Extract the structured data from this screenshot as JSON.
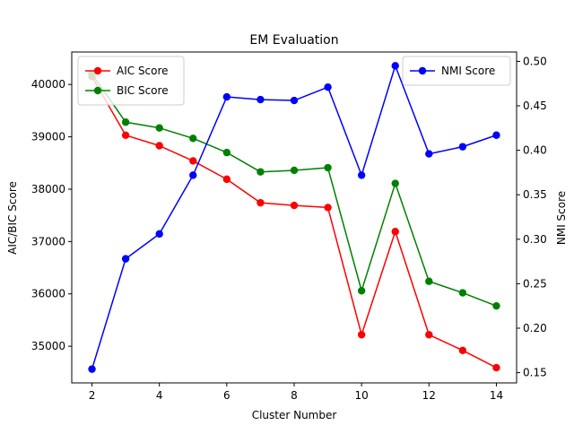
{
  "chart_data": {
    "type": "line",
    "title": "EM Evaluation",
    "xlabel": "Cluster Number",
    "ylabel_left": "AIC/BIC Score",
    "ylabel_right": "NMI Score",
    "x": [
      2,
      3,
      4,
      5,
      6,
      7,
      8,
      9,
      10,
      11,
      12,
      13,
      14
    ],
    "xlim": [
      1.4,
      14.6
    ],
    "xticks": [
      2,
      4,
      6,
      8,
      10,
      12,
      14
    ],
    "ylim_left": [
      34300,
      40620
    ],
    "yticks_left": [
      35000,
      36000,
      37000,
      38000,
      39000,
      40000
    ],
    "ylim_right": [
      0.1385,
      0.5105
    ],
    "yticks_right": [
      0.15,
      0.2,
      0.25,
      0.3,
      0.35,
      0.4,
      0.45,
      0.5
    ],
    "yticks_right_labels": [
      "0.15",
      "0.20",
      "0.25",
      "0.30",
      "0.35",
      "0.40",
      "0.45",
      "0.50"
    ],
    "grid": false,
    "series": [
      {
        "name": "AIC Score",
        "axis": "left",
        "color": "#ff0000",
        "values": [
          40150,
          39030,
          38830,
          38540,
          38190,
          37740,
          37690,
          37650,
          35220,
          37190,
          35220,
          34920,
          34590
        ]
      },
      {
        "name": "BIC Score",
        "axis": "left",
        "color": "#008000",
        "values": [
          40200,
          39280,
          39170,
          38970,
          38700,
          38330,
          38360,
          38410,
          36060,
          38110,
          36240,
          36020,
          35770
        ]
      },
      {
        "name": "NMI Score",
        "axis": "right",
        "color": "#0000ff",
        "values": [
          0.154,
          0.278,
          0.306,
          0.372,
          0.46,
          0.457,
          0.456,
          0.471,
          0.372,
          0.495,
          0.396,
          0.404,
          0.417
        ]
      }
    ],
    "legends": {
      "left": "upper left",
      "right": "upper right"
    }
  }
}
